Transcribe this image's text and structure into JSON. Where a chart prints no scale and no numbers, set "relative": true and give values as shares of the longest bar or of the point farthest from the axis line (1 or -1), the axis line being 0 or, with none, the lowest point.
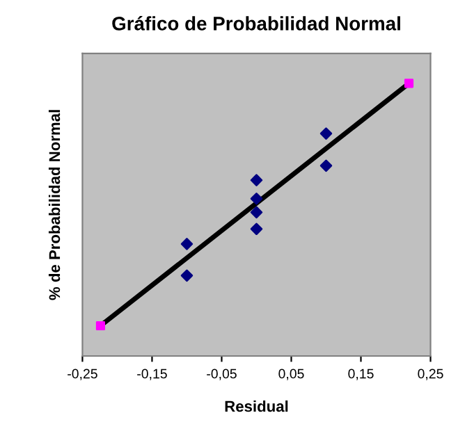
{
  "chart_data": {
    "type": "scatter",
    "title": "Gráfico de Probabilidad Normal",
    "xlabel": "Residual",
    "ylabel": "% de Probabilidad Normal",
    "relative": true,
    "grid": false,
    "legend": false,
    "xlim": [
      -0.25,
      0.25
    ],
    "xticks": [
      {
        "value": -0.25,
        "label": "-0,25"
      },
      {
        "value": -0.15,
        "label": "-0,15"
      },
      {
        "value": -0.05,
        "label": "-0,05"
      },
      {
        "value": 0.05,
        "label": "0,05"
      },
      {
        "value": 0.15,
        "label": "0,15"
      },
      {
        "value": 0.25,
        "label": "0,25"
      }
    ],
    "series": [
      {
        "type": "line",
        "color": "#000000",
        "marker": "none",
        "line_style": "solid",
        "x": [
          -0.224,
          0.219
        ],
        "values": [
          0.111,
          1
        ]
      },
      {
        "type": "scatter",
        "color": "#ff00ff",
        "marker": "square",
        "x": [
          -0.224,
          0.219
        ],
        "values": [
          0.111,
          1
        ]
      },
      {
        "color": "#000080",
        "marker": "diamond",
        "x": [
          -0.1,
          -0.1,
          0,
          0,
          0,
          0,
          0.1,
          0.1
        ],
        "values": [
          0.295,
          0.411,
          0.466,
          0.527,
          0.577,
          0.645,
          0.698,
          0.816
        ]
      }
    ]
  }
}
